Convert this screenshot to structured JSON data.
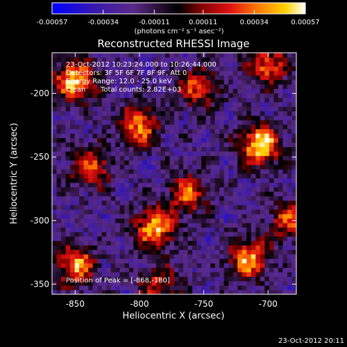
{
  "colorbar": {
    "tick_labels": [
      "-0.00057",
      "-0.00034",
      "-0.00011",
      "0.00011",
      "0.00034",
      "0.00057"
    ],
    "tick_values": [
      -0.00057,
      -0.00034,
      -0.00011,
      0.00011,
      0.00034,
      0.00057
    ],
    "range": [
      -0.00057,
      0.00057
    ],
    "unit_label": "(photons cm⁻² s⁻¹ asec⁻²)",
    "colormap": [
      "#0000ff",
      "#3a1aa8",
      "#5a2a8a",
      "#1a0a20",
      "#000000",
      "#7a0000",
      "#e01010",
      "#ff8000",
      "#ffd000",
      "#ffffff"
    ]
  },
  "chart_data": {
    "type": "heatmap",
    "title": "Reconstructed RHESSI Image",
    "xlabel": "Heliocentric X (arcsec)",
    "ylabel": "Heliocentric Y (arcsec)",
    "xlim": [
      -868,
      -678
    ],
    "ylim": [
      -358,
      -168
    ],
    "x_ticks": [
      -850,
      -800,
      -750,
      -700
    ],
    "x_tick_labels": [
      "-850",
      "-800",
      "-750",
      "-700"
    ],
    "y_ticks": [
      -350,
      -300,
      -250,
      -200
    ],
    "y_tick_labels": [
      "-350",
      "-300",
      "-250",
      "-200"
    ],
    "annotations": {
      "time_range": "23-Oct-2012 10:23:24.000 to 10:26:44.000",
      "detectors": "Detectors: 3F 5F 6F 7F 8F 9F, Att 0",
      "energy": "Energy Range: 12.0 - 25.0 keV",
      "method": "Clean",
      "total_counts": "Total counts: 2.82E+03",
      "peak": "Position of Peak = [-868,-180]"
    },
    "grid": false,
    "bright_sources": [
      {
        "x": -850,
        "y": -190,
        "value": 0.0005
      },
      {
        "x": -800,
        "y": -225,
        "value": 0.00035
      },
      {
        "x": -706,
        "y": -240,
        "value": 0.00055
      },
      {
        "x": -788,
        "y": -305,
        "value": 0.00045
      },
      {
        "x": -762,
        "y": -278,
        "value": 0.0003
      },
      {
        "x": -715,
        "y": -330,
        "value": 0.0004
      },
      {
        "x": -850,
        "y": -335,
        "value": 0.0004
      },
      {
        "x": -683,
        "y": -300,
        "value": 0.00025
      },
      {
        "x": -838,
        "y": -258,
        "value": 0.0003
      },
      {
        "x": -700,
        "y": -178,
        "value": 0.0003
      },
      {
        "x": -755,
        "y": -195,
        "value": 0.00025
      },
      {
        "x": -785,
        "y": -350,
        "value": 0.0002
      }
    ]
  },
  "footer": {
    "timestamp": "23-Oct-2012 20:11"
  }
}
